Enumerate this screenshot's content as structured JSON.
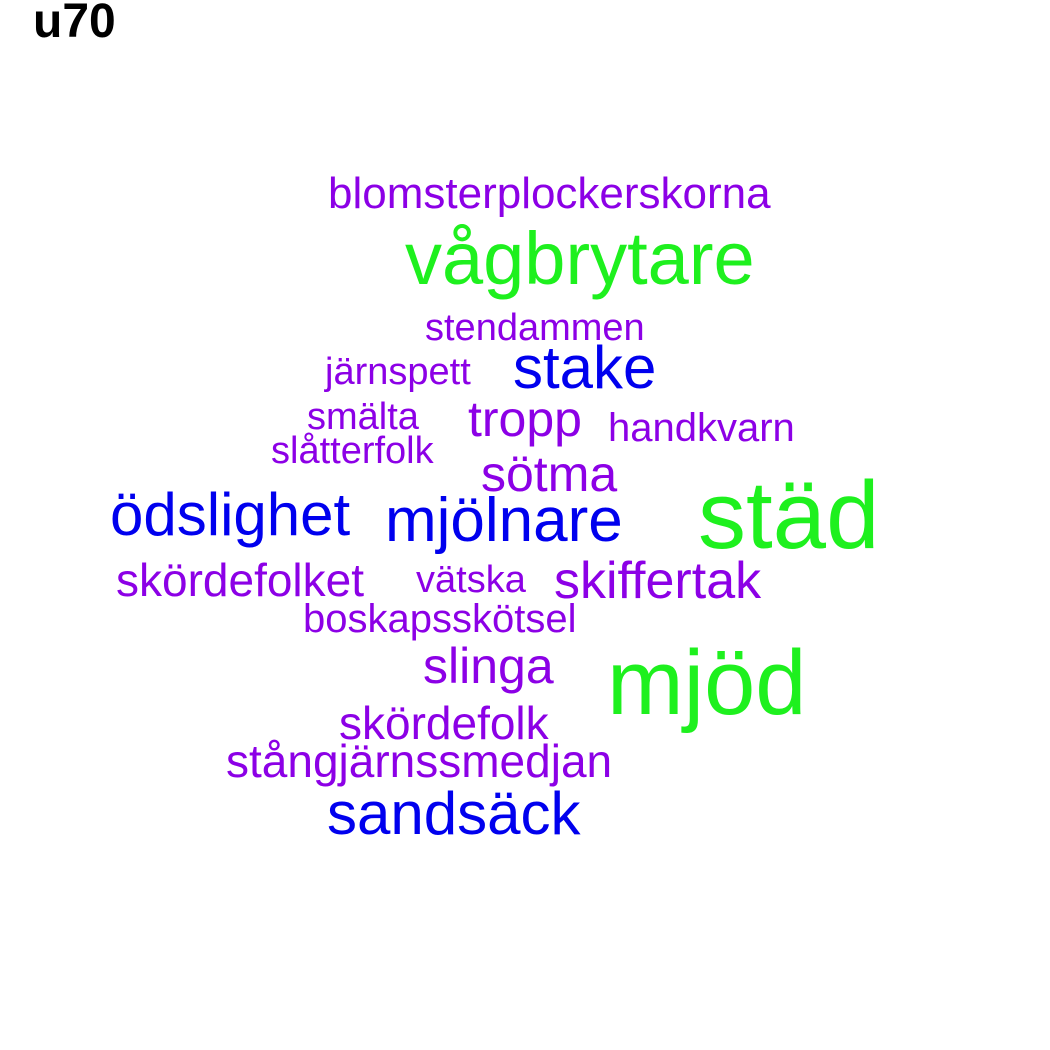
{
  "title": "u70",
  "palette": {
    "green": "#1ef01e",
    "blue": "#0000ee",
    "purple": "#8c00e6"
  },
  "words": [
    {
      "text": "blomsterplockerskorna",
      "color": "purple"
    },
    {
      "text": "vågbrytare",
      "color": "green"
    },
    {
      "text": "stendammen",
      "color": "purple"
    },
    {
      "text": "järnspett",
      "color": "purple"
    },
    {
      "text": "stake",
      "color": "blue"
    },
    {
      "text": "smälta",
      "color": "purple"
    },
    {
      "text": "tropp",
      "color": "purple"
    },
    {
      "text": "handkvarn",
      "color": "purple"
    },
    {
      "text": "slåtterfolk",
      "color": "purple"
    },
    {
      "text": "sötma",
      "color": "purple"
    },
    {
      "text": "ödslighet",
      "color": "blue"
    },
    {
      "text": "mjölnare",
      "color": "blue"
    },
    {
      "text": "städ",
      "color": "green"
    },
    {
      "text": "skördefolket",
      "color": "purple"
    },
    {
      "text": "vätska",
      "color": "purple"
    },
    {
      "text": "skiffertak",
      "color": "purple"
    },
    {
      "text": "boskapsskötsel",
      "color": "purple"
    },
    {
      "text": "slinga",
      "color": "purple"
    },
    {
      "text": "mjöd",
      "color": "green"
    },
    {
      "text": "skördefolk",
      "color": "purple"
    },
    {
      "text": "stångjärnssmedjan",
      "color": "purple"
    },
    {
      "text": "sandsäck",
      "color": "blue"
    }
  ]
}
